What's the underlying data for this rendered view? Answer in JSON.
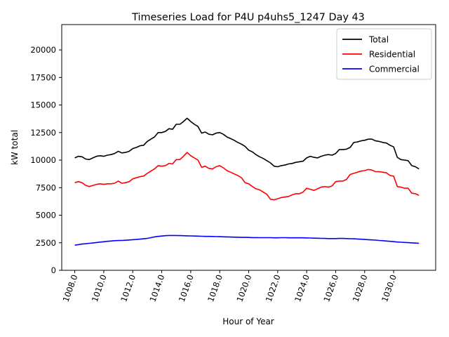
{
  "chart_data": {
    "type": "line",
    "title": "Timeseries Load for P4U p4uhs5_1247  Day 43",
    "xlabel": "Hour of Year",
    "ylabel": "kW total",
    "xlim": [
      1007.1,
      1032.9
    ],
    "ylim": [
      0,
      22300
    ],
    "x_ticks": [
      1008,
      1010,
      1012,
      1014,
      1016,
      1018,
      1020,
      1022,
      1024,
      1026,
      1028,
      1030
    ],
    "x_tick_labels": [
      "1008.0",
      "1010.0",
      "1012.0",
      "1014.0",
      "1016.0",
      "1018.0",
      "1020.0",
      "1022.0",
      "1024.0",
      "1026.0",
      "1028.0",
      "1030.0"
    ],
    "y_ticks": [
      0,
      2500,
      5000,
      7500,
      10000,
      12500,
      15000,
      17500,
      20000
    ],
    "y_tick_labels": [
      "0",
      "2500",
      "5000",
      "7500",
      "10000",
      "12500",
      "15000",
      "17500",
      "20000"
    ],
    "grid": false,
    "legend": "top-right",
    "x": [
      1008.0,
      1008.25,
      1008.5,
      1008.75,
      1009.0,
      1009.25,
      1009.5,
      1009.75,
      1010.0,
      1010.25,
      1010.5,
      1010.75,
      1011.0,
      1011.25,
      1011.5,
      1011.75,
      1012.0,
      1012.25,
      1012.5,
      1012.75,
      1013.0,
      1013.25,
      1013.5,
      1013.75,
      1014.0,
      1014.25,
      1014.5,
      1014.75,
      1015.0,
      1015.25,
      1015.5,
      1015.75,
      1016.0,
      1016.25,
      1016.5,
      1016.75,
      1017.0,
      1017.25,
      1017.5,
      1017.75,
      1018.0,
      1018.25,
      1018.5,
      1018.75,
      1019.0,
      1019.25,
      1019.5,
      1019.75,
      1020.0,
      1020.25,
      1020.5,
      1020.75,
      1021.0,
      1021.25,
      1021.5,
      1021.75,
      1022.0,
      1022.25,
      1022.5,
      1022.75,
      1023.0,
      1023.25,
      1023.5,
      1023.75,
      1024.0,
      1024.25,
      1024.5,
      1024.75,
      1025.0,
      1025.25,
      1025.5,
      1025.75,
      1026.0,
      1026.25,
      1026.5,
      1026.75,
      1027.0,
      1027.25,
      1027.5,
      1027.75,
      1028.0,
      1028.25,
      1028.5,
      1028.75,
      1029.0,
      1029.25,
      1029.5,
      1029.75,
      1030.0,
      1030.25,
      1030.5,
      1030.75,
      1031.0,
      1031.25,
      1031.5,
      1031.75
    ],
    "series": [
      {
        "name": "Total",
        "color": "#000000",
        "values": [
          10200,
          10350,
          10300,
          10100,
          10050,
          10200,
          10350,
          10400,
          10350,
          10450,
          10500,
          10600,
          10800,
          10650,
          10700,
          10800,
          11050,
          11150,
          11300,
          11350,
          11700,
          11900,
          12100,
          12500,
          12500,
          12600,
          12850,
          12800,
          13250,
          13250,
          13500,
          13800,
          13500,
          13250,
          13050,
          12450,
          12550,
          12350,
          12300,
          12450,
          12500,
          12350,
          12100,
          11950,
          11800,
          11600,
          11450,
          11250,
          10900,
          10750,
          10500,
          10300,
          10150,
          9950,
          9750,
          9450,
          9400,
          9500,
          9550,
          9650,
          9700,
          9800,
          9850,
          9900,
          10200,
          10350,
          10250,
          10200,
          10350,
          10450,
          10500,
          10450,
          10600,
          10950,
          10950,
          11000,
          11150,
          11600,
          11650,
          11750,
          11800,
          11900,
          11900,
          11750,
          11700,
          11600,
          11550,
          11350,
          11200,
          10250,
          10050,
          10000,
          9950,
          9500,
          9400,
          9200
        ]
      },
      {
        "name": "Residential",
        "color": "#ff0000",
        "values": [
          7950,
          8050,
          7950,
          7700,
          7600,
          7700,
          7800,
          7850,
          7800,
          7850,
          7850,
          7900,
          8100,
          7900,
          7950,
          8050,
          8300,
          8400,
          8500,
          8550,
          8800,
          9000,
          9200,
          9500,
          9450,
          9500,
          9700,
          9650,
          10050,
          10050,
          10350,
          10700,
          10400,
          10200,
          10000,
          9350,
          9450,
          9250,
          9200,
          9400,
          9500,
          9300,
          9050,
          8900,
          8750,
          8600,
          8400,
          7950,
          7850,
          7600,
          7400,
          7300,
          7100,
          6900,
          6450,
          6400,
          6500,
          6600,
          6650,
          6700,
          6850,
          6950,
          6950,
          7100,
          7450,
          7350,
          7250,
          7400,
          7550,
          7600,
          7550,
          7650,
          8050,
          8100,
          8100,
          8250,
          8700,
          8800,
          8900,
          9000,
          9050,
          9150,
          9100,
          8950,
          8950,
          8900,
          8850,
          8600,
          8550,
          7600,
          7550,
          7450,
          7450,
          7000,
          6950,
          6800
        ]
      },
      {
        "name": "Commercial",
        "color": "#0000ff",
        "values": [
          2280,
          2330,
          2380,
          2410,
          2450,
          2480,
          2520,
          2560,
          2590,
          2630,
          2660,
          2690,
          2700,
          2710,
          2730,
          2750,
          2780,
          2800,
          2830,
          2860,
          2900,
          2960,
          3030,
          3080,
          3110,
          3140,
          3160,
          3160,
          3160,
          3150,
          3140,
          3130,
          3120,
          3110,
          3100,
          3090,
          3080,
          3080,
          3070,
          3060,
          3050,
          3040,
          3030,
          3020,
          3010,
          3000,
          2990,
          2990,
          2980,
          2970,
          2970,
          2960,
          2960,
          2960,
          2960,
          2950,
          2950,
          2960,
          2960,
          2950,
          2950,
          2950,
          2950,
          2950,
          2940,
          2930,
          2920,
          2910,
          2900,
          2890,
          2880,
          2880,
          2880,
          2890,
          2890,
          2880,
          2870,
          2860,
          2840,
          2820,
          2800,
          2780,
          2760,
          2740,
          2710,
          2690,
          2660,
          2630,
          2600,
          2570,
          2550,
          2530,
          2510,
          2490,
          2470,
          2450
        ]
      }
    ]
  }
}
